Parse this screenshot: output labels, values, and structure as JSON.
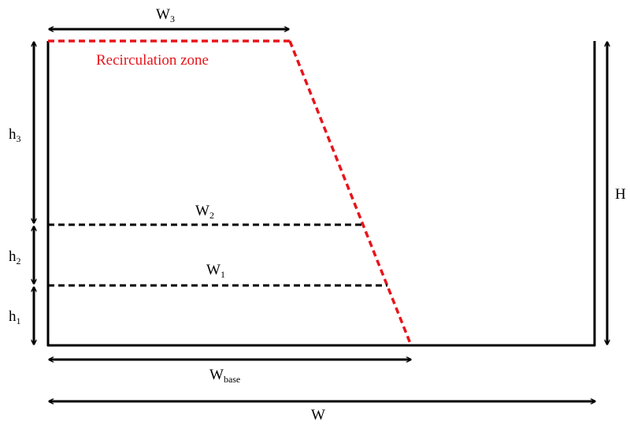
{
  "colors": {
    "structure": "#000000",
    "recirculation": "#e8141b",
    "background": "#ffffff"
  },
  "labels": {
    "recirculation_zone": "Recirculation zone",
    "w3": {
      "main": "W",
      "sub": "3"
    },
    "w2": {
      "main": "W",
      "sub": "2"
    },
    "w1": {
      "main": "W",
      "sub": "1"
    },
    "wbase": {
      "main": "W",
      "sub": "base"
    },
    "w": {
      "main": "W"
    },
    "h3": {
      "main": "h",
      "sub": "3"
    },
    "h2": {
      "main": "h",
      "sub": "2"
    },
    "h1": {
      "main": "h",
      "sub": "1"
    },
    "H": {
      "main": "H"
    }
  }
}
